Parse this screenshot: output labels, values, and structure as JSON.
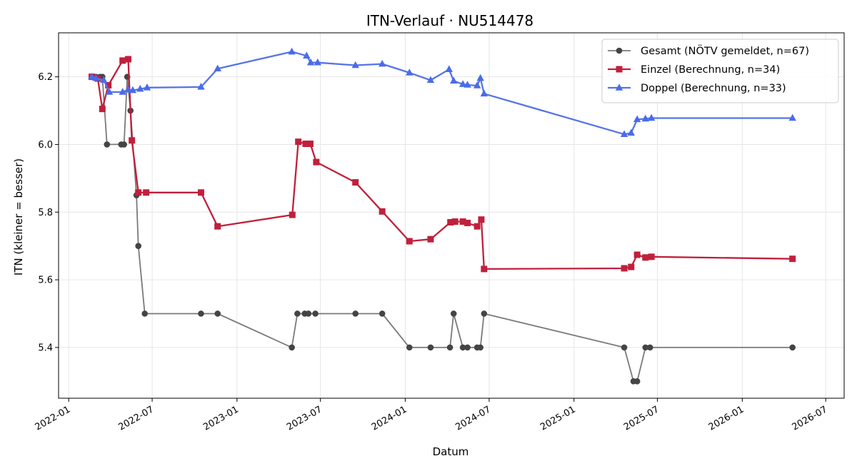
{
  "chart_data": {
    "type": "line",
    "title": "ITN-Verlauf · NU514478",
    "xlabel": "Datum",
    "ylabel": "ITN  (kleiner = besser)",
    "x_axis_type": "date",
    "xlim": [
      "2021-12-10",
      "2026-08-10"
    ],
    "ylim": [
      5.25,
      6.33
    ],
    "xticks": [
      "2022-01",
      "2022-07",
      "2023-01",
      "2023-07",
      "2024-01",
      "2024-07",
      "2025-01",
      "2025-07",
      "2026-01",
      "2026-07"
    ],
    "yticks": [
      5.4,
      5.6,
      5.8,
      6.0,
      6.2
    ],
    "grid": true,
    "legend_position": "top-right",
    "series": [
      {
        "name": "Gesamt (NÖTV gemeldet, n=67)",
        "color": "#444444",
        "line_color": "#7a7a7a",
        "marker": "circle",
        "points": [
          [
            "2022-02-20",
            6.2
          ],
          [
            "2022-03-01",
            6.2
          ],
          [
            "2022-03-10",
            6.2
          ],
          [
            "2022-03-15",
            6.2
          ],
          [
            "2022-03-25",
            6.0
          ],
          [
            "2022-04-25",
            6.0
          ],
          [
            "2022-05-01",
            6.0
          ],
          [
            "2022-05-08",
            6.2
          ],
          [
            "2022-05-15",
            6.1
          ],
          [
            "2022-05-28",
            5.85
          ],
          [
            "2022-06-01",
            5.7
          ],
          [
            "2022-06-15",
            5.5
          ],
          [
            "2022-10-15",
            5.5
          ],
          [
            "2022-11-20",
            5.5
          ],
          [
            "2023-04-30",
            5.4
          ],
          [
            "2023-05-12",
            5.5
          ],
          [
            "2023-05-28",
            5.5
          ],
          [
            "2023-06-05",
            5.5
          ],
          [
            "2023-06-20",
            5.5
          ],
          [
            "2023-09-15",
            5.5
          ],
          [
            "2023-11-12",
            5.5
          ],
          [
            "2024-01-10",
            5.4
          ],
          [
            "2024-02-25",
            5.4
          ],
          [
            "2024-04-07",
            5.4
          ],
          [
            "2024-04-15",
            5.5
          ],
          [
            "2024-05-05",
            5.4
          ],
          [
            "2024-05-15",
            5.4
          ],
          [
            "2024-06-05",
            5.4
          ],
          [
            "2024-06-12",
            5.4
          ],
          [
            "2024-06-20",
            5.5
          ],
          [
            "2025-04-20",
            5.4
          ],
          [
            "2025-05-10",
            5.3
          ],
          [
            "2025-05-18",
            5.3
          ],
          [
            "2025-06-05",
            5.4
          ],
          [
            "2025-06-15",
            5.4
          ],
          [
            "2026-04-20",
            5.4
          ]
        ]
      },
      {
        "name": "Einzel (Berechnung, n=34)",
        "color": "#c0203c",
        "line_color": "#c0203c",
        "marker": "square",
        "points": [
          [
            "2022-02-20",
            6.2
          ],
          [
            "2022-03-05",
            6.195
          ],
          [
            "2022-03-15",
            6.105
          ],
          [
            "2022-03-28",
            6.175
          ],
          [
            "2022-04-28",
            6.248
          ],
          [
            "2022-05-10",
            6.252
          ],
          [
            "2022-05-18",
            6.012
          ],
          [
            "2022-06-01",
            5.858
          ],
          [
            "2022-06-18",
            5.858
          ],
          [
            "2022-10-15",
            5.858
          ],
          [
            "2022-11-20",
            5.758
          ],
          [
            "2023-05-01",
            5.792
          ],
          [
            "2023-05-14",
            6.008
          ],
          [
            "2023-05-30",
            6.002
          ],
          [
            "2023-06-09",
            6.002
          ],
          [
            "2023-06-22",
            5.948
          ],
          [
            "2023-09-15",
            5.888
          ],
          [
            "2023-11-12",
            5.802
          ],
          [
            "2024-01-10",
            5.714
          ],
          [
            "2024-02-25",
            5.72
          ],
          [
            "2024-04-08",
            5.77
          ],
          [
            "2024-04-18",
            5.772
          ],
          [
            "2024-05-05",
            5.772
          ],
          [
            "2024-05-15",
            5.768
          ],
          [
            "2024-06-05",
            5.758
          ],
          [
            "2024-06-14",
            5.778
          ],
          [
            "2024-06-20",
            5.632
          ],
          [
            "2025-04-20",
            5.634
          ],
          [
            "2025-05-05",
            5.638
          ],
          [
            "2025-05-18",
            5.674
          ],
          [
            "2025-06-05",
            5.666
          ],
          [
            "2025-06-18",
            5.668
          ],
          [
            "2026-04-20",
            5.662
          ]
        ]
      },
      {
        "name": "Doppel (Berechnung, n=33)",
        "color": "#4a6bea",
        "line_color": "#5573e8",
        "marker": "triangle",
        "points": [
          [
            "2022-02-20",
            6.2
          ],
          [
            "2022-03-01",
            6.196
          ],
          [
            "2022-03-18",
            6.19
          ],
          [
            "2022-03-30",
            6.155
          ],
          [
            "2022-04-28",
            6.155
          ],
          [
            "2022-05-10",
            6.162
          ],
          [
            "2022-05-20",
            6.16
          ],
          [
            "2022-06-05",
            6.164
          ],
          [
            "2022-06-20",
            6.168
          ],
          [
            "2022-10-15",
            6.17
          ],
          [
            "2022-11-20",
            6.224
          ],
          [
            "2023-04-30",
            6.274
          ],
          [
            "2023-06-01",
            6.262
          ],
          [
            "2023-06-10",
            6.242
          ],
          [
            "2023-06-25",
            6.242
          ],
          [
            "2023-09-15",
            6.234
          ],
          [
            "2023-11-12",
            6.238
          ],
          [
            "2024-01-10",
            6.212
          ],
          [
            "2024-02-25",
            6.19
          ],
          [
            "2024-04-05",
            6.222
          ],
          [
            "2024-04-15",
            6.188
          ],
          [
            "2024-05-05",
            6.178
          ],
          [
            "2024-05-15",
            6.176
          ],
          [
            "2024-06-05",
            6.174
          ],
          [
            "2024-06-12",
            6.196
          ],
          [
            "2024-06-20",
            6.15
          ],
          [
            "2025-04-20",
            6.03
          ],
          [
            "2025-05-05",
            6.034
          ],
          [
            "2025-05-18",
            6.074
          ],
          [
            "2025-06-05",
            6.076
          ],
          [
            "2025-06-18",
            6.078
          ],
          [
            "2026-04-20",
            6.078
          ]
        ]
      }
    ]
  }
}
